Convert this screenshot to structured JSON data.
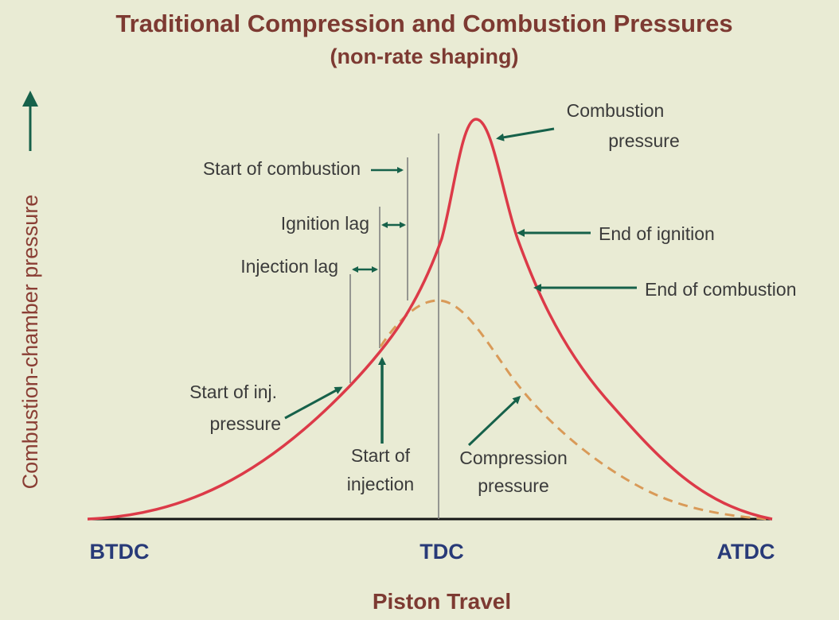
{
  "title": "Traditional Compression and Combustion Pressures",
  "subtitle": "(non-rate shaping)",
  "y_axis_label": "Combustion-chamber pressure",
  "x_axis_label": "Piston Travel",
  "x_ticks": [
    "BTDC",
    "TDC",
    "ATDC"
  ],
  "labels": {
    "combustion_pressure": [
      "Combustion",
      "pressure"
    ],
    "start_of_combustion": "Start of combustion",
    "ignition_lag": "Ignition lag",
    "injection_lag": "Injection lag",
    "end_of_ignition": "End of ignition",
    "end_of_combustion": "End of combustion",
    "start_of_inj_pressure": [
      "Start of inj.",
      "pressure"
    ],
    "start_of_injection": [
      "Start of",
      "injection"
    ],
    "compression_pressure": [
      "Compression",
      "pressure"
    ]
  },
  "colors": {
    "combustion_curve": "#dc3a48",
    "compression_curve": "#d99a58",
    "arrows": "#16614a",
    "background": "#e9ebd4"
  }
}
